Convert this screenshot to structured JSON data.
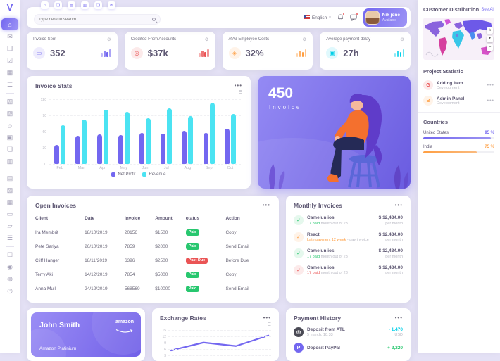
{
  "app": {
    "logo": "V"
  },
  "ui": {
    "dots": "•••",
    "gear": "⚙",
    "hamburger": "☰",
    "caret": "▾",
    "check": "✓",
    "map_home": "⌂",
    "map_zoom_in": "+",
    "map_zoom_out": "−"
  },
  "colors": {
    "primary": "#7367F0",
    "success": "#28C76F",
    "danger": "#EA5455",
    "warning": "#FF9F43",
    "info": "#00CFE8",
    "revenue": "#4BE3F2"
  },
  "sidebar": {
    "items": [
      {
        "divider": true
      },
      {
        "name": "dashboard",
        "glyph": "⌂",
        "active": true
      },
      {
        "name": "email",
        "glyph": "✉"
      },
      {
        "name": "chat",
        "glyph": "❏"
      },
      {
        "name": "todo",
        "glyph": "☑"
      },
      {
        "name": "calendar",
        "glyph": "▦"
      },
      {
        "name": "menu-list",
        "glyph": "☰"
      },
      {
        "divider": true
      },
      {
        "name": "image",
        "glyph": "▨"
      },
      {
        "name": "gallery",
        "glyph": "▧"
      },
      {
        "name": "user",
        "glyph": "☺"
      },
      {
        "name": "briefcase",
        "glyph": "▣"
      },
      {
        "name": "message",
        "glyph": "❏"
      },
      {
        "name": "cart",
        "glyph": "▥"
      },
      {
        "divider": true
      },
      {
        "name": "portfolio",
        "glyph": "▤"
      },
      {
        "name": "photo",
        "glyph": "▨"
      },
      {
        "name": "grid",
        "glyph": "▦"
      },
      {
        "name": "payment-card",
        "glyph": "▭"
      },
      {
        "name": "folder",
        "glyph": "▱"
      },
      {
        "name": "list",
        "glyph": "☰"
      },
      {
        "divider": true
      },
      {
        "name": "box",
        "glyph": "☐"
      },
      {
        "name": "pin",
        "glyph": "◉"
      },
      {
        "name": "bell",
        "glyph": "◍"
      },
      {
        "name": "clock",
        "glyph": "◷"
      }
    ]
  },
  "header": {
    "shortcuts": [
      {
        "name": "home",
        "glyph": "⌂"
      },
      {
        "name": "chat",
        "glyph": "❏"
      },
      {
        "name": "file",
        "glyph": "▤"
      },
      {
        "name": "printer",
        "glyph": "▥"
      },
      {
        "name": "message",
        "glyph": "❏"
      },
      {
        "name": "mail",
        "glyph": "✉"
      }
    ],
    "search": {
      "placeholder": "Type here to search..."
    },
    "language": {
      "label": "English"
    },
    "user": {
      "name": "Nik jone",
      "status": "Available"
    }
  },
  "stat_cards": [
    {
      "title": "Invoice Sent",
      "value": "352",
      "icon": "invoice-icon",
      "glyph": "▭",
      "accent": "#7367F0",
      "tint": "#eeecfd"
    },
    {
      "title": "Credited From Accounts",
      "value": "$37k",
      "icon": "credit-icon",
      "glyph": "◎",
      "accent": "#EA5455",
      "tint": "#fceaea"
    },
    {
      "title": "AVG Employee Costs",
      "value": "32%",
      "icon": "cost-icon",
      "glyph": "◈",
      "accent": "#FF9F43",
      "tint": "#fff3e8"
    },
    {
      "title": "Average payment delay",
      "value": "27h",
      "icon": "delay-icon",
      "glyph": "▣",
      "accent": "#00CFE8",
      "tint": "#e0f9fd"
    }
  ],
  "invoice_card": {
    "value": "450",
    "label": "Invoice"
  },
  "open_invoices": {
    "title": "Open Invoices",
    "columns": [
      "Client",
      "Date",
      "Invoice",
      "Amount",
      "otatus",
      "Action"
    ],
    "rows": [
      {
        "client": "Ira Membrit",
        "date": "18/10/2019",
        "invoice": "20156",
        "amount": "$1500",
        "status": "Paid",
        "status_type": "paid",
        "action": "Copy"
      },
      {
        "client": "Pete Sariya",
        "date": "26/10/2019",
        "invoice": "7859",
        "amount": "$2000",
        "status": "Paid",
        "status_type": "paid",
        "action": "Send Email"
      },
      {
        "client": "Cliff Hanger",
        "date": "18/11/2019",
        "invoice": "6396",
        "amount": "$2500",
        "status": "Past Due",
        "status_type": "due",
        "action": "Before Due"
      },
      {
        "client": "Terry Aki",
        "date": "14/12/2019",
        "invoice": "7854",
        "amount": "$5000",
        "status": "Paid",
        "status_type": "paid",
        "action": "Copy"
      },
      {
        "client": "Anna Mull",
        "date": "24/12/2019",
        "invoice": "568569",
        "amount": "$10000",
        "status": "Paid",
        "status_type": "paid",
        "action": "Send Email"
      }
    ]
  },
  "monthly_invoices": {
    "title": "Monthly Invoices",
    "items": [
      {
        "name": "Camelun ios",
        "highlight": "17 paid",
        "detail": " month out of 23",
        "amount": "$ 12,434.00",
        "per": "per month",
        "state": "success"
      },
      {
        "name": "React",
        "highlight": "Late payment 12 week",
        "detail": " - pay invoice",
        "amount": "$ 12,434.00",
        "per": "per month",
        "state": "warning"
      },
      {
        "name": "Camelun ios",
        "highlight": "17 paid",
        "detail": " month out of 23",
        "amount": "$ 12,434.00",
        "per": "per month",
        "state": "success"
      },
      {
        "name": "Camelun ios",
        "highlight": "17 paid",
        "detail": " month out of 23",
        "amount": "$ 12,434.00",
        "per": "per month",
        "state": "danger"
      }
    ]
  },
  "card_widget": {
    "name": "John Smith",
    "brand": "amazon",
    "type": "Amazon Platinium"
  },
  "payment_history": {
    "title": "Payment History",
    "items": [
      {
        "label": "Deposit from ATL",
        "date": "5 march, 18:33",
        "amount": "- 1,470",
        "currency": "USD",
        "amount_state": "info",
        "icon": "record",
        "icon_glyph": "◎"
      },
      {
        "label": "Deposit PayPal",
        "date": "",
        "amount": "+ 2,220",
        "currency": "",
        "amount_state": "success",
        "icon": "paypal",
        "icon_glyph": "P"
      }
    ]
  },
  "right_panel": {
    "customer_distribution": {
      "title": "Customer Distribution",
      "link": "See All"
    },
    "project_statistic": {
      "title": "Project Statistic",
      "items": [
        {
          "initial": "G",
          "name": "Adding Item",
          "sub": "Development",
          "state": "danger"
        },
        {
          "initial": "B",
          "name": "Admin Panel",
          "sub": "Development",
          "state": "warning"
        }
      ]
    },
    "countries": {
      "title": "Countries",
      "items": [
        {
          "name": "United States",
          "percent": "95 %",
          "value": 95,
          "color": "#7367F0"
        },
        {
          "name": "India",
          "percent": "75 %",
          "value": 75,
          "color": "#FF9F43"
        }
      ]
    }
  },
  "chart_data": [
    {
      "type": "bar",
      "title": "Invoice Stats",
      "categories": [
        "Feb",
        "Mar",
        "Apr",
        "May",
        "Jun",
        "Jul",
        "Aug",
        "Sep",
        "Oct"
      ],
      "series": [
        {
          "name": "Net Profit",
          "color": "#7367F0",
          "values": [
            35,
            52,
            55,
            54,
            58,
            56,
            61,
            58,
            65
          ]
        },
        {
          "name": "Revenue",
          "color": "#4BE3F2",
          "values": [
            72,
            82,
            100,
            96,
            85,
            103,
            89,
            113,
            92
          ]
        }
      ],
      "ylim": [
        0,
        120
      ],
      "yticks": [
        0,
        30,
        60,
        90,
        120
      ],
      "grid": true,
      "legend_position": "bottom"
    },
    {
      "type": "line",
      "title": "Exchange Rates",
      "x": [
        1,
        2,
        3,
        4
      ],
      "values": [
        5,
        9.5,
        7.5,
        13.5
      ],
      "color": "#7367F0",
      "ylim": [
        3,
        15
      ],
      "yticks": [
        3,
        6,
        9,
        12,
        15
      ],
      "grid": true
    }
  ]
}
